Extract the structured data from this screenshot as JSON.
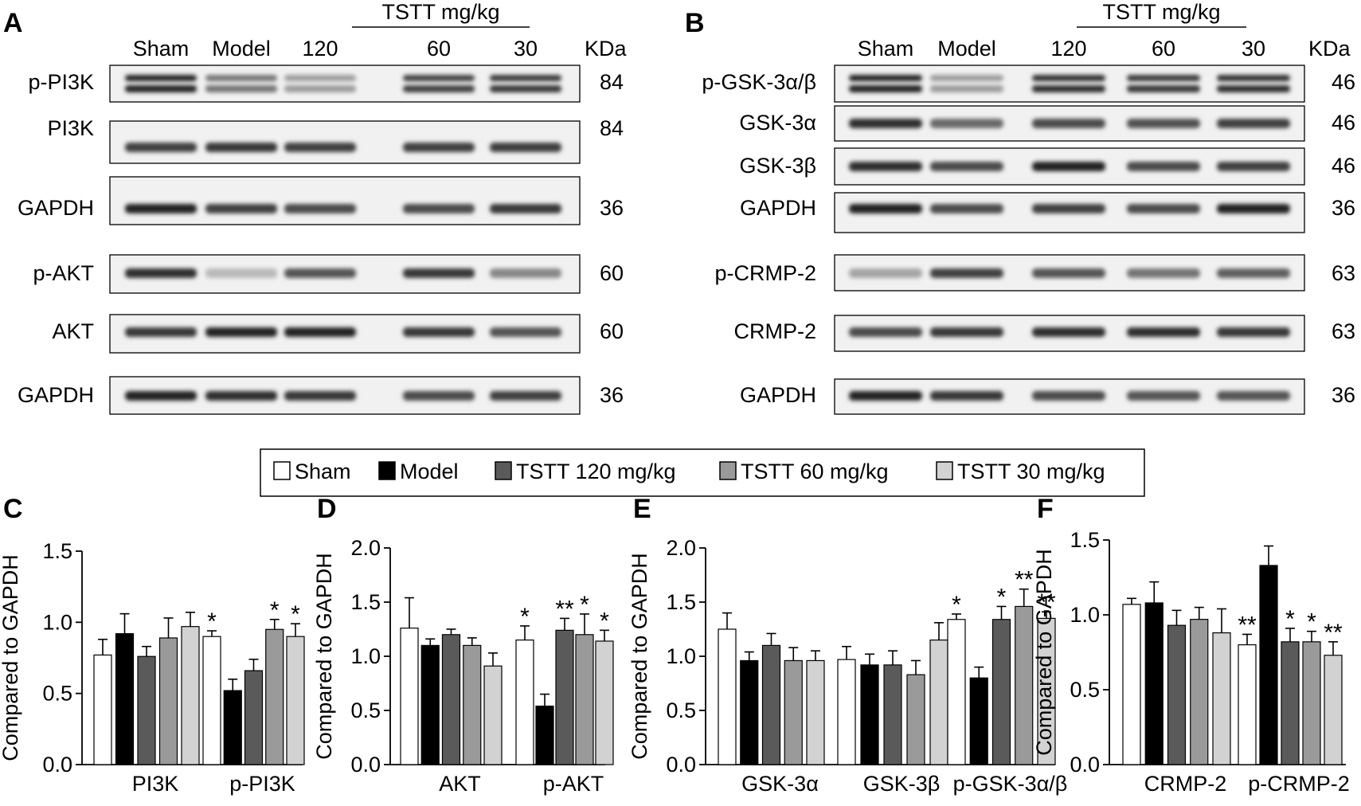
{
  "panel_a": {
    "letter": "A",
    "group_header": "TSTT mg/kg",
    "lanes": [
      "Sham",
      "Model",
      "120",
      "60",
      "30"
    ],
    "kda_header": "KDa",
    "rows": [
      {
        "label": "p-PI3K",
        "kda": "84",
        "bands": [
          0.95,
          0.55,
          0.35,
          0.8,
          0.85
        ],
        "double": true
      },
      {
        "label": "PI3K",
        "kda": "84",
        "bands": [
          0.8,
          0.85,
          0.8,
          0.8,
          0.82
        ],
        "double": false
      },
      {
        "label": "GAPDH",
        "kda": "36",
        "bands": [
          0.95,
          0.8,
          0.75,
          0.75,
          0.85
        ],
        "double": false
      },
      {
        "label": "p-AKT",
        "kda": "60",
        "bands": [
          0.9,
          0.2,
          0.7,
          0.85,
          0.45
        ],
        "double": false
      },
      {
        "label": "AKT",
        "kda": "60",
        "bands": [
          0.85,
          0.95,
          0.95,
          0.85,
          0.7
        ],
        "double": false
      },
      {
        "label": "GAPDH",
        "kda": "36",
        "bands": [
          0.95,
          0.9,
          0.85,
          0.75,
          0.8
        ],
        "double": false
      }
    ]
  },
  "panel_b": {
    "letter": "B",
    "group_header": "TSTT mg/kg",
    "lanes": [
      "Sham",
      "Model",
      "120",
      "60",
      "30"
    ],
    "kda_header": "KDa",
    "rows": [
      {
        "label": "p-GSK-3α/β",
        "kda": "46",
        "bands": [
          0.95,
          0.35,
          0.9,
          0.85,
          0.9
        ],
        "double": true
      },
      {
        "label": "GSK-3α",
        "kda": "46",
        "bands": [
          0.9,
          0.6,
          0.75,
          0.72,
          0.8
        ],
        "double": false
      },
      {
        "label": "GSK-3β",
        "kda": "46",
        "bands": [
          0.9,
          0.75,
          0.95,
          0.75,
          0.8
        ],
        "double": false
      },
      {
        "label": "GAPDH",
        "kda": "36",
        "bands": [
          0.95,
          0.75,
          0.8,
          0.75,
          0.95
        ],
        "double": false
      },
      {
        "label": "p-CRMP-2",
        "kda": "63",
        "bands": [
          0.3,
          0.8,
          0.7,
          0.55,
          0.65
        ],
        "double": false
      },
      {
        "label": "CRMP-2",
        "kda": "63",
        "bands": [
          0.75,
          0.85,
          0.9,
          0.9,
          0.85
        ],
        "double": false
      },
      {
        "label": "GAPDH",
        "kda": "36",
        "bands": [
          0.95,
          0.85,
          0.75,
          0.7,
          0.7
        ],
        "double": false
      }
    ]
  },
  "legend": {
    "entries": [
      {
        "label": "Sham",
        "color": "#ffffff"
      },
      {
        "label": "Model",
        "color": "#000000"
      },
      {
        "label": "TSTT 120 mg/kg",
        "color": "#5a5a5a"
      },
      {
        "label": "TSTT 60 mg/kg",
        "color": "#9a9a9a"
      },
      {
        "label": "TSTT 30 mg/kg",
        "color": "#d2d2d2"
      }
    ]
  },
  "chart_data": [
    {
      "panel": "C",
      "type": "bar",
      "ylabel": "Compared to GAPDH",
      "ylim": [
        0,
        1.5
      ],
      "yticks": [
        "0.0",
        "0.5",
        "1.0",
        "1.5"
      ],
      "categories": [
        "PI3K",
        "p-PI3K"
      ],
      "values": [
        [
          0.77,
          0.92,
          0.76,
          0.89,
          0.97
        ],
        [
          0.9,
          0.52,
          0.66,
          0.95,
          0.9
        ]
      ],
      "errors": [
        [
          0.11,
          0.14,
          0.07,
          0.14,
          0.1
        ],
        [
          0.04,
          0.08,
          0.08,
          0.07,
          0.09
        ]
      ],
      "significance": [
        [
          "",
          "",
          "",
          "",
          ""
        ],
        [
          "*",
          "",
          "",
          "*",
          "*"
        ]
      ]
    },
    {
      "panel": "D",
      "type": "bar",
      "ylabel": "Compared to GAPDH",
      "ylim": [
        0,
        2.0
      ],
      "yticks": [
        "0.0",
        "0.5",
        "1.0",
        "1.5",
        "2.0"
      ],
      "categories": [
        "AKT",
        "p-AKT"
      ],
      "values": [
        [
          1.26,
          1.1,
          1.2,
          1.1,
          0.91
        ],
        [
          1.15,
          0.54,
          1.24,
          1.2,
          1.14
        ]
      ],
      "errors": [
        [
          0.28,
          0.06,
          0.05,
          0.07,
          0.12
        ],
        [
          0.13,
          0.11,
          0.11,
          0.19,
          0.1
        ]
      ],
      "significance": [
        [
          "",
          "",
          "",
          "",
          ""
        ],
        [
          "*",
          "",
          "**",
          "*",
          "*"
        ]
      ]
    },
    {
      "panel": "E",
      "type": "bar",
      "ylabel": "Compared to GAPDH",
      "ylim": [
        0,
        2.0
      ],
      "yticks": [
        "0.0",
        "0.5",
        "1.0",
        "1.5",
        "2.0"
      ],
      "categories": [
        "GSK-3α",
        "GSK-3β",
        "p-GSK-3α/β"
      ],
      "values": [
        [
          1.25,
          0.96,
          1.1,
          0.96,
          0.96
        ],
        [
          0.97,
          0.92,
          0.92,
          0.83,
          1.15
        ],
        [
          1.34,
          0.8,
          1.34,
          1.46,
          1.35
        ]
      ],
      "errors": [
        [
          0.15,
          0.08,
          0.11,
          0.12,
          0.09
        ],
        [
          0.12,
          0.1,
          0.13,
          0.13,
          0.16
        ],
        [
          0.05,
          0.1,
          0.12,
          0.16,
          0.06
        ]
      ],
      "significance": [
        [
          "",
          "",
          "",
          "",
          ""
        ],
        [
          "",
          "",
          "",
          "",
          ""
        ],
        [
          "*",
          "",
          "*",
          "**",
          "**"
        ]
      ]
    },
    {
      "panel": "F",
      "type": "bar",
      "ylabel": "Compared to GAPDH",
      "ylim": [
        0,
        1.5
      ],
      "yticks": [
        "0.0",
        "0.5",
        "1.0",
        "1.5"
      ],
      "categories": [
        "CRMP-2",
        "p-CRMP-2"
      ],
      "values": [
        [
          1.07,
          1.08,
          0.93,
          0.97,
          0.88
        ],
        [
          0.8,
          1.33,
          0.82,
          0.82,
          0.73
        ]
      ],
      "errors": [
        [
          0.04,
          0.14,
          0.1,
          0.08,
          0.16
        ],
        [
          0.07,
          0.13,
          0.09,
          0.07,
          0.09
        ]
      ],
      "significance": [
        [
          "",
          "",
          "",
          "",
          ""
        ],
        [
          "**",
          "",
          "*",
          "*",
          "**"
        ]
      ]
    }
  ]
}
